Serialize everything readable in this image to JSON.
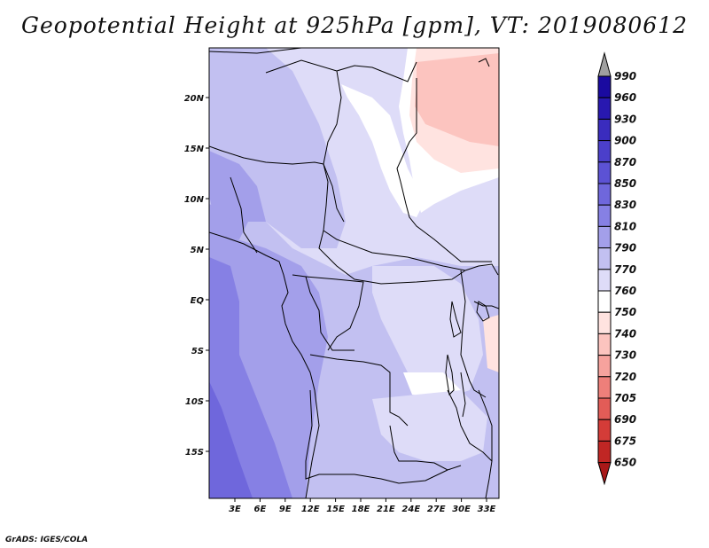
{
  "title": "Geopotential Height at 925hPa [gpm], VT: 2019080612",
  "credit": "GrADS: IGES/COLA",
  "lat_labels": [
    "20N",
    "15N",
    "10N",
    "5N",
    "EQ",
    "5S",
    "10S",
    "15S"
  ],
  "lon_labels": [
    "3E",
    "6E",
    "9E",
    "12E",
    "15E",
    "18E",
    "21E",
    "24E",
    "27E",
    "30E",
    "33E"
  ],
  "colorbar": {
    "levels": [
      "990",
      "960",
      "930",
      "900",
      "870",
      "850",
      "830",
      "810",
      "790",
      "770",
      "760",
      "750",
      "740",
      "730",
      "720",
      "705",
      "690",
      "675",
      "650"
    ],
    "colors": [
      "#1a0aa0",
      "#2818b0",
      "#3a2cbe",
      "#4b3fca",
      "#5c52d4",
      "#6f67dc",
      "#8680e4",
      "#a39fea",
      "#c2c0f1",
      "#dedcf8",
      "#ffffff",
      "#ffe3e0",
      "#fcc4bf",
      "#f6a29d",
      "#ee7f7a",
      "#e25c57",
      "#d43c38",
      "#c02624",
      "#a81818"
    ],
    "over_color": "#a0a0a0",
    "under_color": "#a81818"
  },
  "legend_colors": {
    "ocean_deep": "#8680e4",
    "coast_mid": "#a39fea",
    "land_low": "#c2c0f1",
    "land_mid": "#dedcf8",
    "plateau": "#ffffff",
    "sahara_pink": "#ffe3e0",
    "sahara_rose": "#fcc4bf"
  },
  "map_extent": {
    "lon_min": 0,
    "lon_max": 34,
    "lat_min": -20,
    "lat_max": 25
  }
}
